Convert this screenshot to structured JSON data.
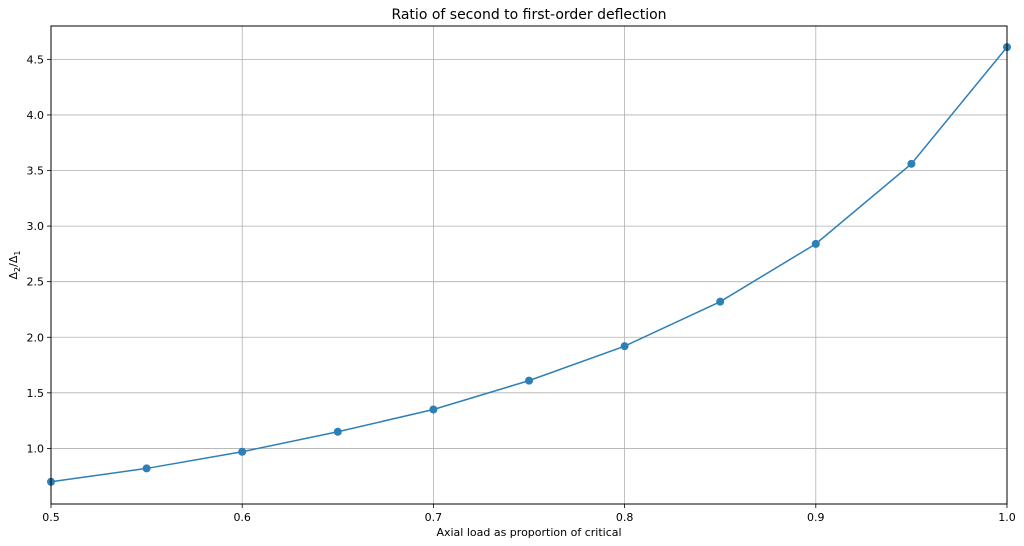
{
  "chart_data": {
    "type": "line",
    "title": "Ratio of second to first-order deflection",
    "xlabel": "Axial load as proportion of critical",
    "ylabel": "Δ2/Δ1",
    "ylabel_main": "Δ",
    "ylabel_sub1": "2",
    "ylabel_slash": "/Δ",
    "ylabel_sub2": "1",
    "xlim": [
      0.5,
      1.0
    ],
    "ylim": [
      0.5,
      4.8
    ],
    "grid": true,
    "legend": "none",
    "x_ticks": [
      0.5,
      0.6,
      0.7,
      0.8,
      0.9,
      1.0
    ],
    "x_tick_labels": [
      "0.5",
      "0.6",
      "0.7",
      "0.8",
      "0.9",
      "1.0"
    ],
    "y_ticks": [
      1.0,
      1.5,
      2.0,
      2.5,
      3.0,
      3.5,
      4.0,
      4.5
    ],
    "y_tick_labels": [
      "1.0",
      "1.5",
      "2.0",
      "2.5",
      "3.0",
      "3.5",
      "4.0",
      "4.5"
    ],
    "series": [
      {
        "color": "#2d7fb8",
        "marker": "circle",
        "x": [
          0.5,
          0.55,
          0.6,
          0.65,
          0.7,
          0.75,
          0.8,
          0.85,
          0.9,
          0.95,
          1.0
        ],
        "y": [
          0.7,
          0.82,
          0.97,
          1.15,
          1.35,
          1.61,
          1.92,
          2.32,
          2.84,
          3.56,
          4.61
        ]
      }
    ]
  }
}
